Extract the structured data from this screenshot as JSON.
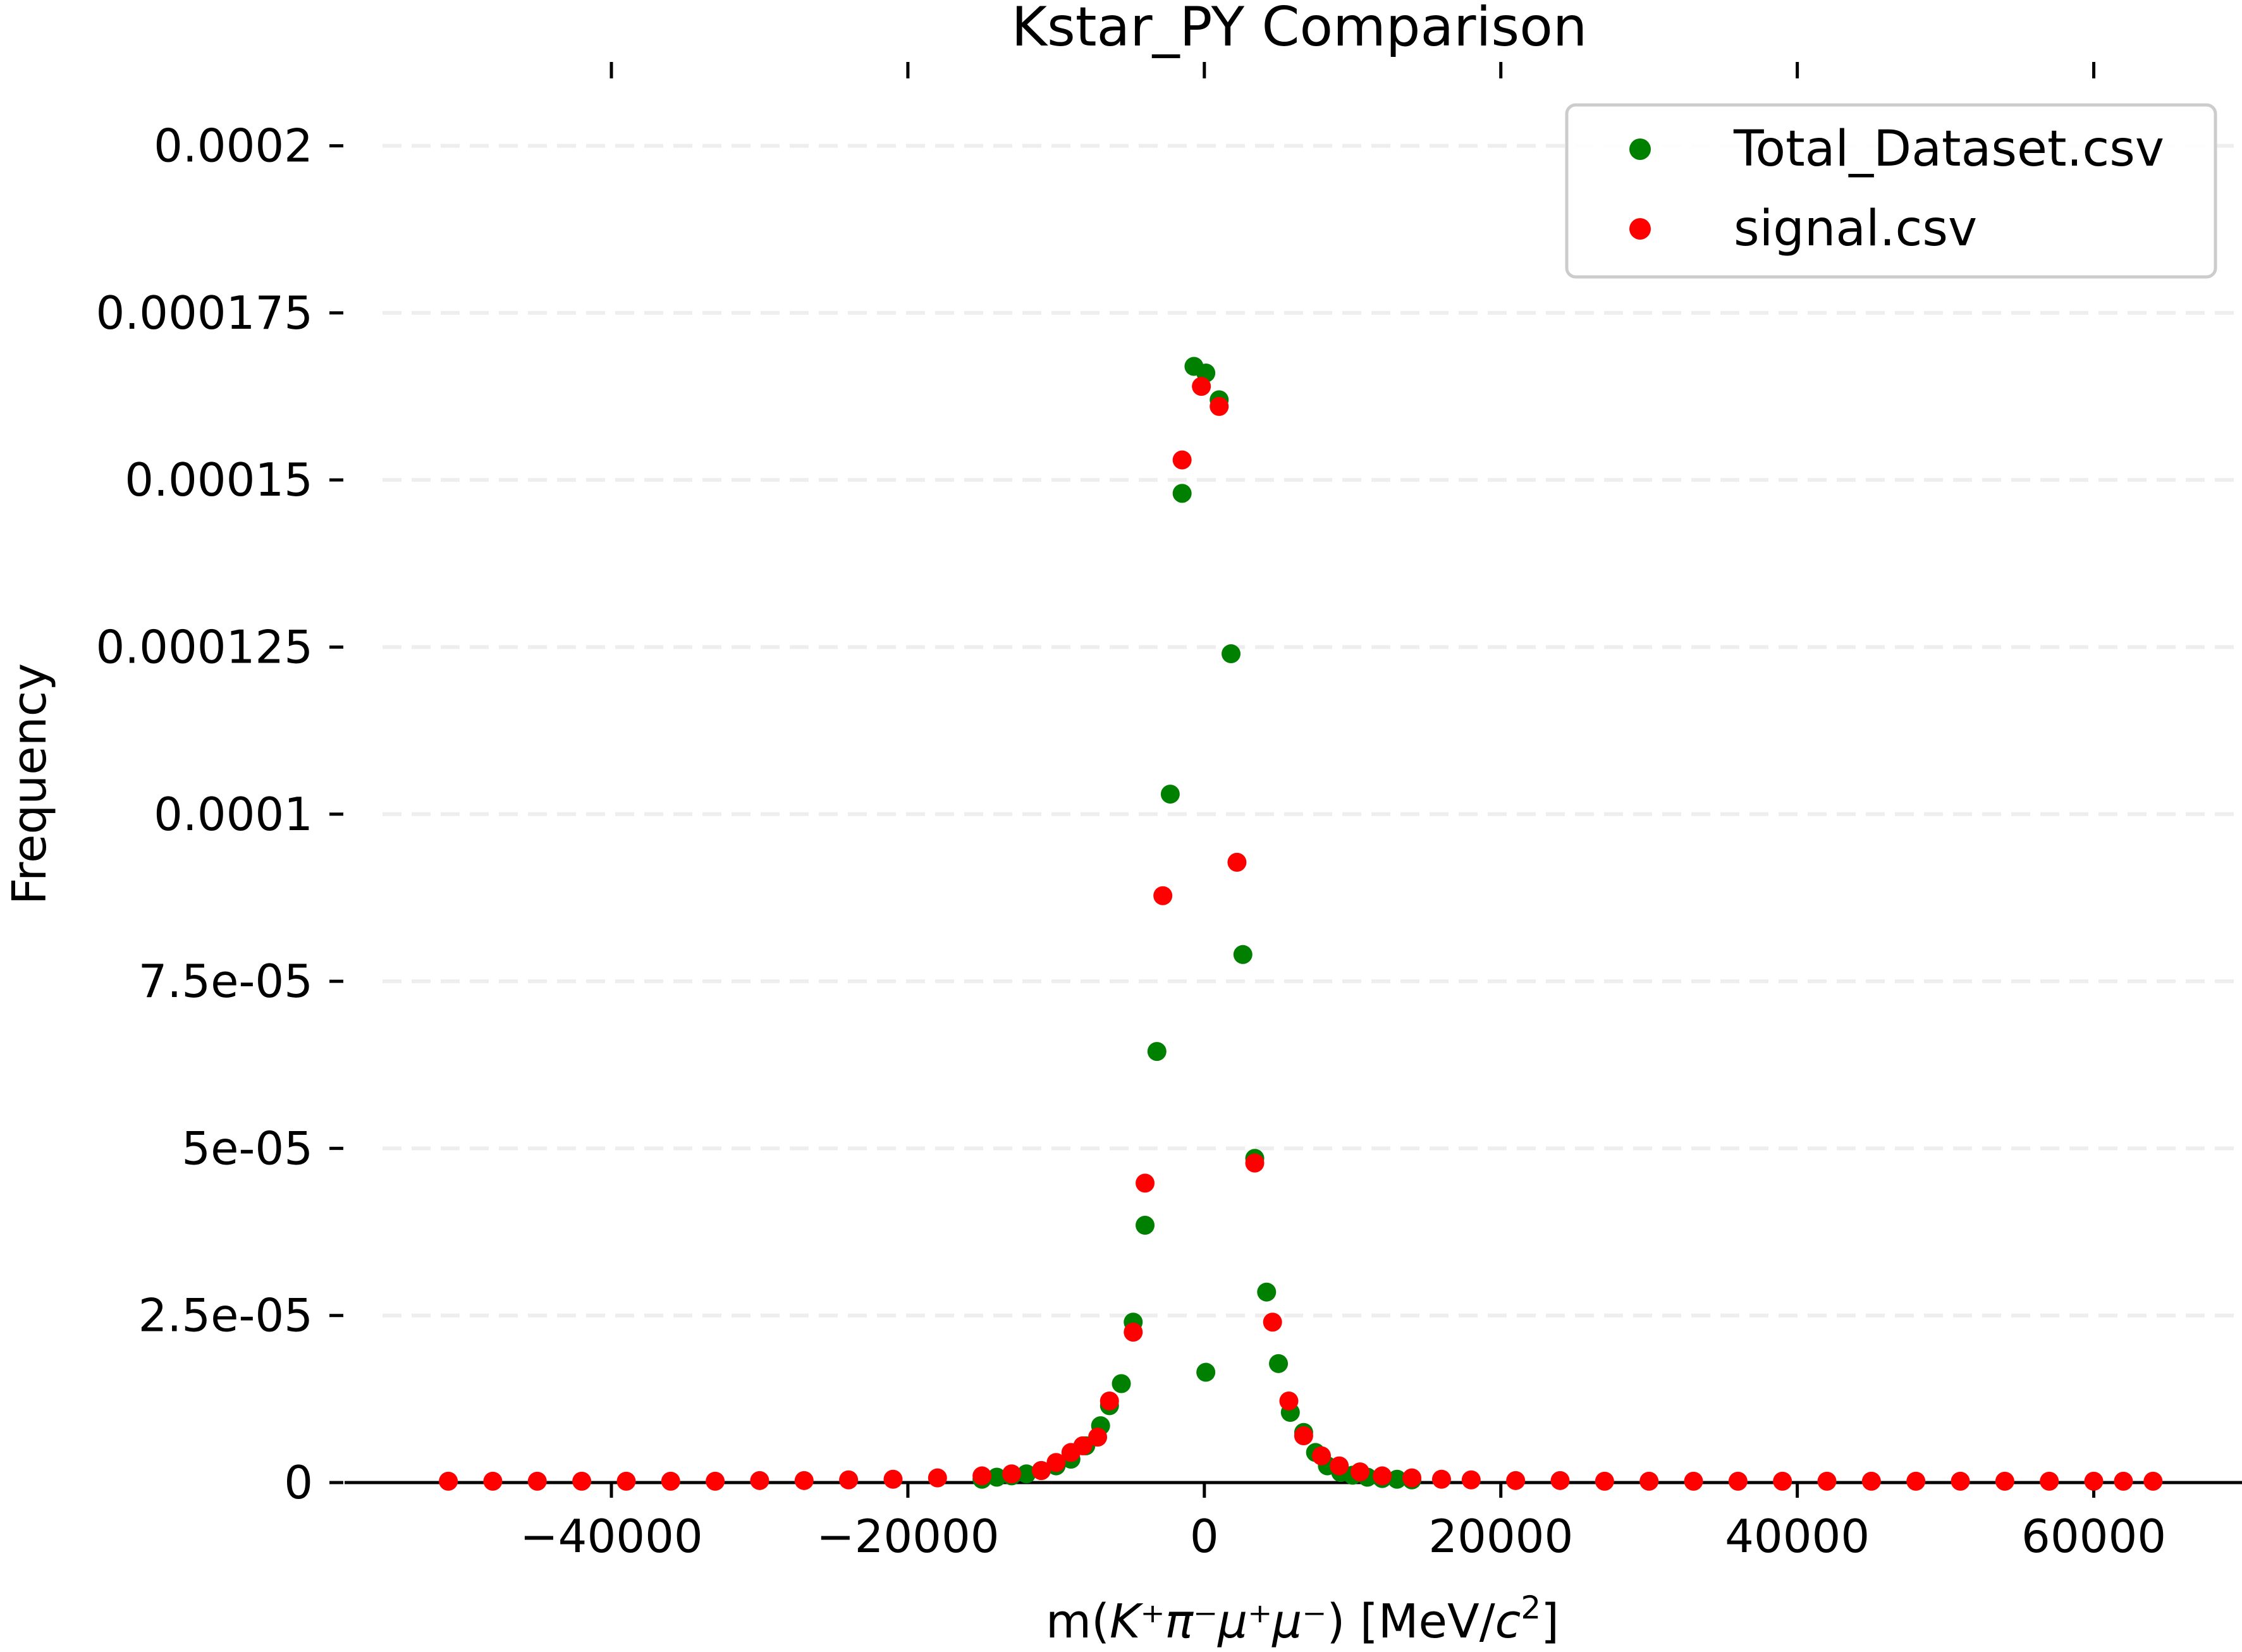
{
  "chart_data": {
    "type": "scatter",
    "title": "Kstar_PY Comparison",
    "xlabel": {
      "pre": "m(",
      "math": "K⁺π⁻μ⁺μ⁻",
      "post": ") [MeV/",
      "c": "c",
      "sup": "2",
      "close": "]"
    },
    "ylabel": "Frequency",
    "xlim": [
      -58000,
      70000
    ],
    "ylim": [
      0,
      0.000215
    ],
    "xticks": [
      -40000,
      -20000,
      0,
      20000,
      40000,
      60000
    ],
    "xtick_labels": [
      "−40000",
      "−20000",
      "0",
      "20000",
      "40000",
      "60000"
    ],
    "yticks": [
      0,
      2.5e-05,
      5e-05,
      7.5e-05,
      0.0001,
      0.000125,
      0.00015,
      0.000175,
      0.0002
    ],
    "ytick_labels": [
      "0",
      "2.5e-05",
      "5e-05",
      "7.5e-05",
      "0.0001",
      "0.000125",
      "0.00015",
      "0.000175",
      "0.0002"
    ],
    "grid": {
      "y": true,
      "style": "dashed"
    },
    "legend_position": "upper right",
    "series": [
      {
        "name": "Total_Dataset.csv",
        "color": "#008000",
        "points": [
          [
            -15000,
            5e-07
          ],
          [
            -14000,
            8e-07
          ],
          [
            -13000,
            1e-06
          ],
          [
            -12000,
            1.3e-06
          ],
          [
            -11000,
            1.8e-06
          ],
          [
            -10000,
            2.5e-06
          ],
          [
            -9000,
            3.5e-06
          ],
          [
            -8000,
            5.5e-06
          ],
          [
            -7000,
            8.5e-06
          ],
          [
            -6400,
            1.15e-05
          ],
          [
            -5600,
            1.48e-05
          ],
          [
            -4800,
            2.4e-05
          ],
          [
            -4000,
            3.85e-05
          ],
          [
            -3200,
            6.45e-05
          ],
          [
            -2300,
            0.000103
          ],
          [
            -1500,
            0.000148
          ],
          [
            -700,
            0.000167
          ],
          [
            100,
            1.65e-05
          ],
          [
            100,
            0.000166
          ],
          [
            1000,
            0.000162
          ],
          [
            1800,
            0.000124
          ],
          [
            2600,
            7.9e-05
          ],
          [
            3400,
            4.85e-05
          ],
          [
            4200,
            2.85e-05
          ],
          [
            5000,
            1.78e-05
          ],
          [
            5800,
            1.05e-05
          ],
          [
            6700,
            7.5e-06
          ],
          [
            7500,
            4.5e-06
          ],
          [
            8300,
            2.5e-06
          ],
          [
            9200,
            1.5e-06
          ],
          [
            10000,
            1.1e-06
          ],
          [
            11000,
            8e-07
          ],
          [
            12000,
            6e-07
          ],
          [
            13000,
            5e-07
          ],
          [
            14000,
            4e-07
          ]
        ]
      },
      {
        "name": "signal.csv",
        "color": "#ff0000",
        "points": [
          [
            -51000,
            2e-07
          ],
          [
            -48000,
            2e-07
          ],
          [
            -45000,
            2e-07
          ],
          [
            -42000,
            2e-07
          ],
          [
            -39000,
            2e-07
          ],
          [
            -36000,
            2e-07
          ],
          [
            -33000,
            2e-07
          ],
          [
            -30000,
            3e-07
          ],
          [
            -27000,
            3e-07
          ],
          [
            -24000,
            4e-07
          ],
          [
            -21000,
            5e-07
          ],
          [
            -18000,
            7e-07
          ],
          [
            -15000,
            1e-06
          ],
          [
            -13000,
            1.3e-06
          ],
          [
            -11000,
            1.8e-06
          ],
          [
            -10000,
            3e-06
          ],
          [
            -9000,
            4.5e-06
          ],
          [
            -8200,
            5.5e-06
          ],
          [
            -7200,
            6.8e-06
          ],
          [
            -6400,
            1.22e-05
          ],
          [
            -4800,
            2.25e-05
          ],
          [
            -4000,
            4.48e-05
          ],
          [
            -2800,
            8.78e-05
          ],
          [
            -1500,
            0.000153
          ],
          [
            -200,
            0.000164
          ],
          [
            1000,
            0.000161
          ],
          [
            2200,
            9.28e-05
          ],
          [
            3400,
            4.78e-05
          ],
          [
            4600,
            2.4e-05
          ],
          [
            5700,
            1.22e-05
          ],
          [
            6700,
            7e-06
          ],
          [
            7900,
            4e-06
          ],
          [
            9100,
            2.5e-06
          ],
          [
            10500,
            1.6e-06
          ],
          [
            12000,
            1e-06
          ],
          [
            14000,
            7e-07
          ],
          [
            16000,
            5e-07
          ],
          [
            18000,
            4e-07
          ],
          [
            21000,
            3e-07
          ],
          [
            24000,
            3e-07
          ],
          [
            27000,
            2e-07
          ],
          [
            30000,
            2e-07
          ],
          [
            33000,
            2e-07
          ],
          [
            36000,
            2e-07
          ],
          [
            39000,
            2e-07
          ],
          [
            42000,
            2e-07
          ],
          [
            45000,
            2e-07
          ],
          [
            48000,
            2e-07
          ],
          [
            51000,
            2e-07
          ],
          [
            54000,
            2e-07
          ],
          [
            57000,
            2e-07
          ],
          [
            60000,
            2e-07
          ],
          [
            62000,
            2e-07
          ],
          [
            64000,
            2e-07
          ]
        ]
      }
    ]
  }
}
